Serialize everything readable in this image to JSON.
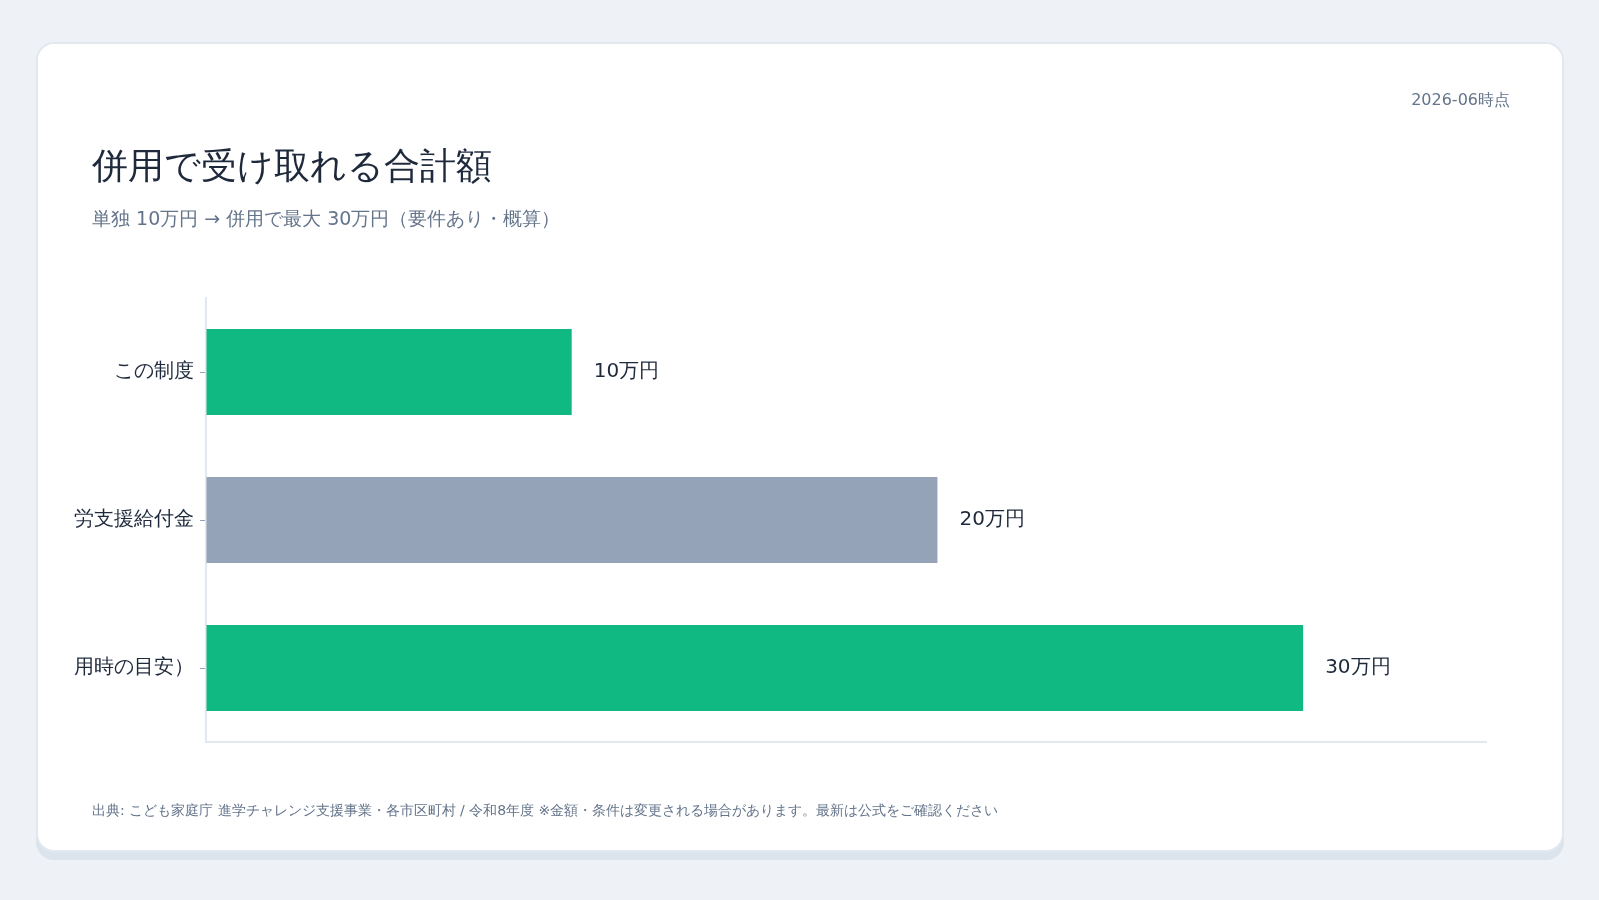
{
  "chart_data": {
    "type": "bar",
    "orientation": "horizontal",
    "title": "併用で受け取れる合計額",
    "subtitle": "単独 10万円 → 併用で最大 30万円（要件あり・概算）",
    "categories": [
      "この制度",
      "労支援給付金",
      "用時の目安）"
    ],
    "values": [
      10,
      20,
      30
    ],
    "colors": [
      "#10b981",
      "#94a3b8",
      "#10b981"
    ],
    "value_labels": [
      "10万円",
      "20万円",
      "30万円"
    ],
    "tick_labels": "y",
    "legend": false,
    "annotations": [
      "2026-06時点",
      "出典: こども家庭庁 進学チャレンジ支援事業・各市区町村 / 令和8年度 ※金額・条件は変更される場合があります。最新は公式をご確認ください"
    ]
  }
}
